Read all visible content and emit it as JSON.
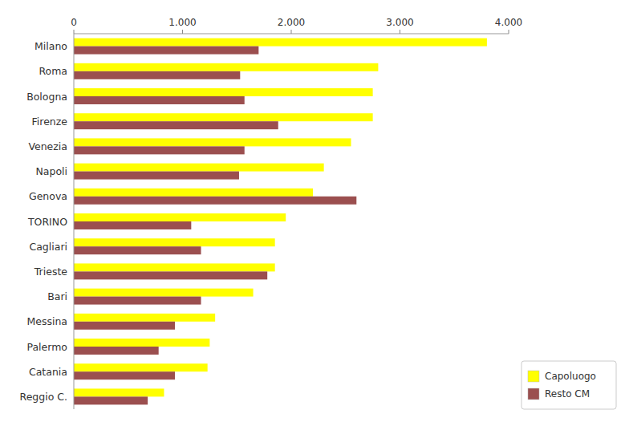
{
  "chart_data": {
    "type": "bar",
    "orientation": "horizontal",
    "categories": [
      "Milano",
      "Roma",
      "Bologna",
      "Firenze",
      "Venezia",
      "Napoli",
      "Genova",
      "TORINO",
      "Cagliari",
      "Trieste",
      "Bari",
      "Messina",
      "Palermo",
      "Catania",
      "Reggio C."
    ],
    "series": [
      {
        "name": "Capoluogo",
        "color": "#ffff00",
        "values": [
          3800,
          2800,
          2750,
          2750,
          2550,
          2300,
          2200,
          1950,
          1850,
          1850,
          1650,
          1300,
          1250,
          1230,
          830
        ]
      },
      {
        "name": "Resto CM",
        "color": "#9b4f4f",
        "values": [
          1700,
          1530,
          1570,
          1880,
          1570,
          1520,
          2600,
          1080,
          1170,
          1780,
          1170,
          930,
          780,
          930,
          680
        ]
      }
    ],
    "xlim": [
      0,
      4000
    ],
    "xticks": [
      0,
      {
        "value": 1000,
        "label": "1.000"
      },
      {
        "value": 2000,
        "label": "2.000"
      },
      {
        "value": 3000,
        "label": "3.000"
      },
      {
        "value": 4000,
        "label": "4.000"
      }
    ],
    "grid": false,
    "legend": "lower right"
  }
}
